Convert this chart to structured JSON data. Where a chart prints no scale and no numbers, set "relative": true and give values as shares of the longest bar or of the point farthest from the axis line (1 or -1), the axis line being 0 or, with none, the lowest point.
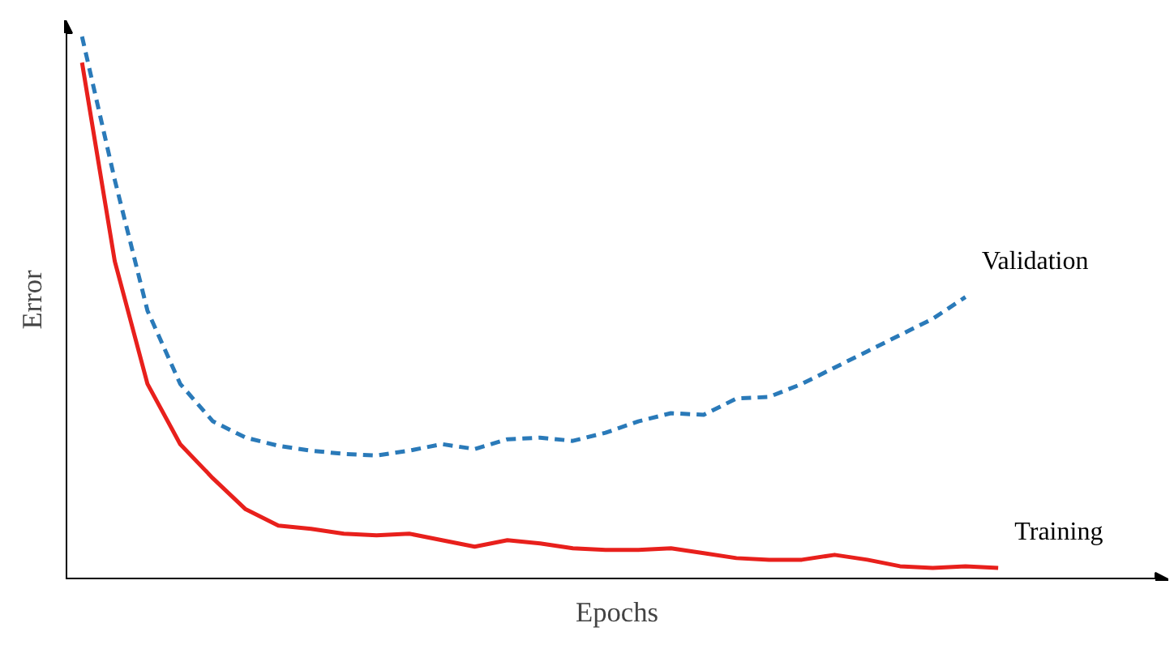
{
  "chart_data": {
    "type": "line",
    "relative": true,
    "xlabel": "Epochs",
    "ylabel": "Error",
    "grid": false,
    "marker": "none",
    "categories": [
      null,
      null,
      null,
      null,
      null,
      null,
      null,
      null,
      null,
      null,
      null,
      null,
      null,
      null,
      null,
      null,
      null,
      null,
      null,
      null,
      null,
      null,
      null,
      null,
      null,
      null,
      null,
      null,
      null
    ],
    "series": [
      {
        "name": "Validation",
        "color": "#2a7ab9",
        "line_style": "dashed",
        "values": [
          1,
          0.736,
          0.495,
          0.36,
          0.291,
          0.261,
          0.246,
          0.237,
          0.231,
          0.228,
          0.237,
          0.249,
          0.24,
          0.258,
          0.261,
          0.255,
          0.27,
          0.291,
          0.306,
          0.303,
          0.333,
          0.336,
          0.36,
          0.39,
          0.42,
          0.45,
          0.48,
          0.52,
          null
        ]
      },
      {
        "name": "Training",
        "color": "#e8201c",
        "line_style": "solid",
        "values": [
          0.952,
          0.586,
          0.36,
          0.249,
          0.186,
          0.129,
          0.099,
          0.093,
          0.084,
          0.081,
          0.084,
          0.072,
          0.06,
          0.072,
          0.066,
          0.057,
          0.054,
          0.054,
          0.057,
          0.048,
          0.039,
          0.036,
          0.036,
          0.045,
          0.036,
          0.024,
          0.021,
          0.024,
          0.021
        ]
      }
    ]
  }
}
